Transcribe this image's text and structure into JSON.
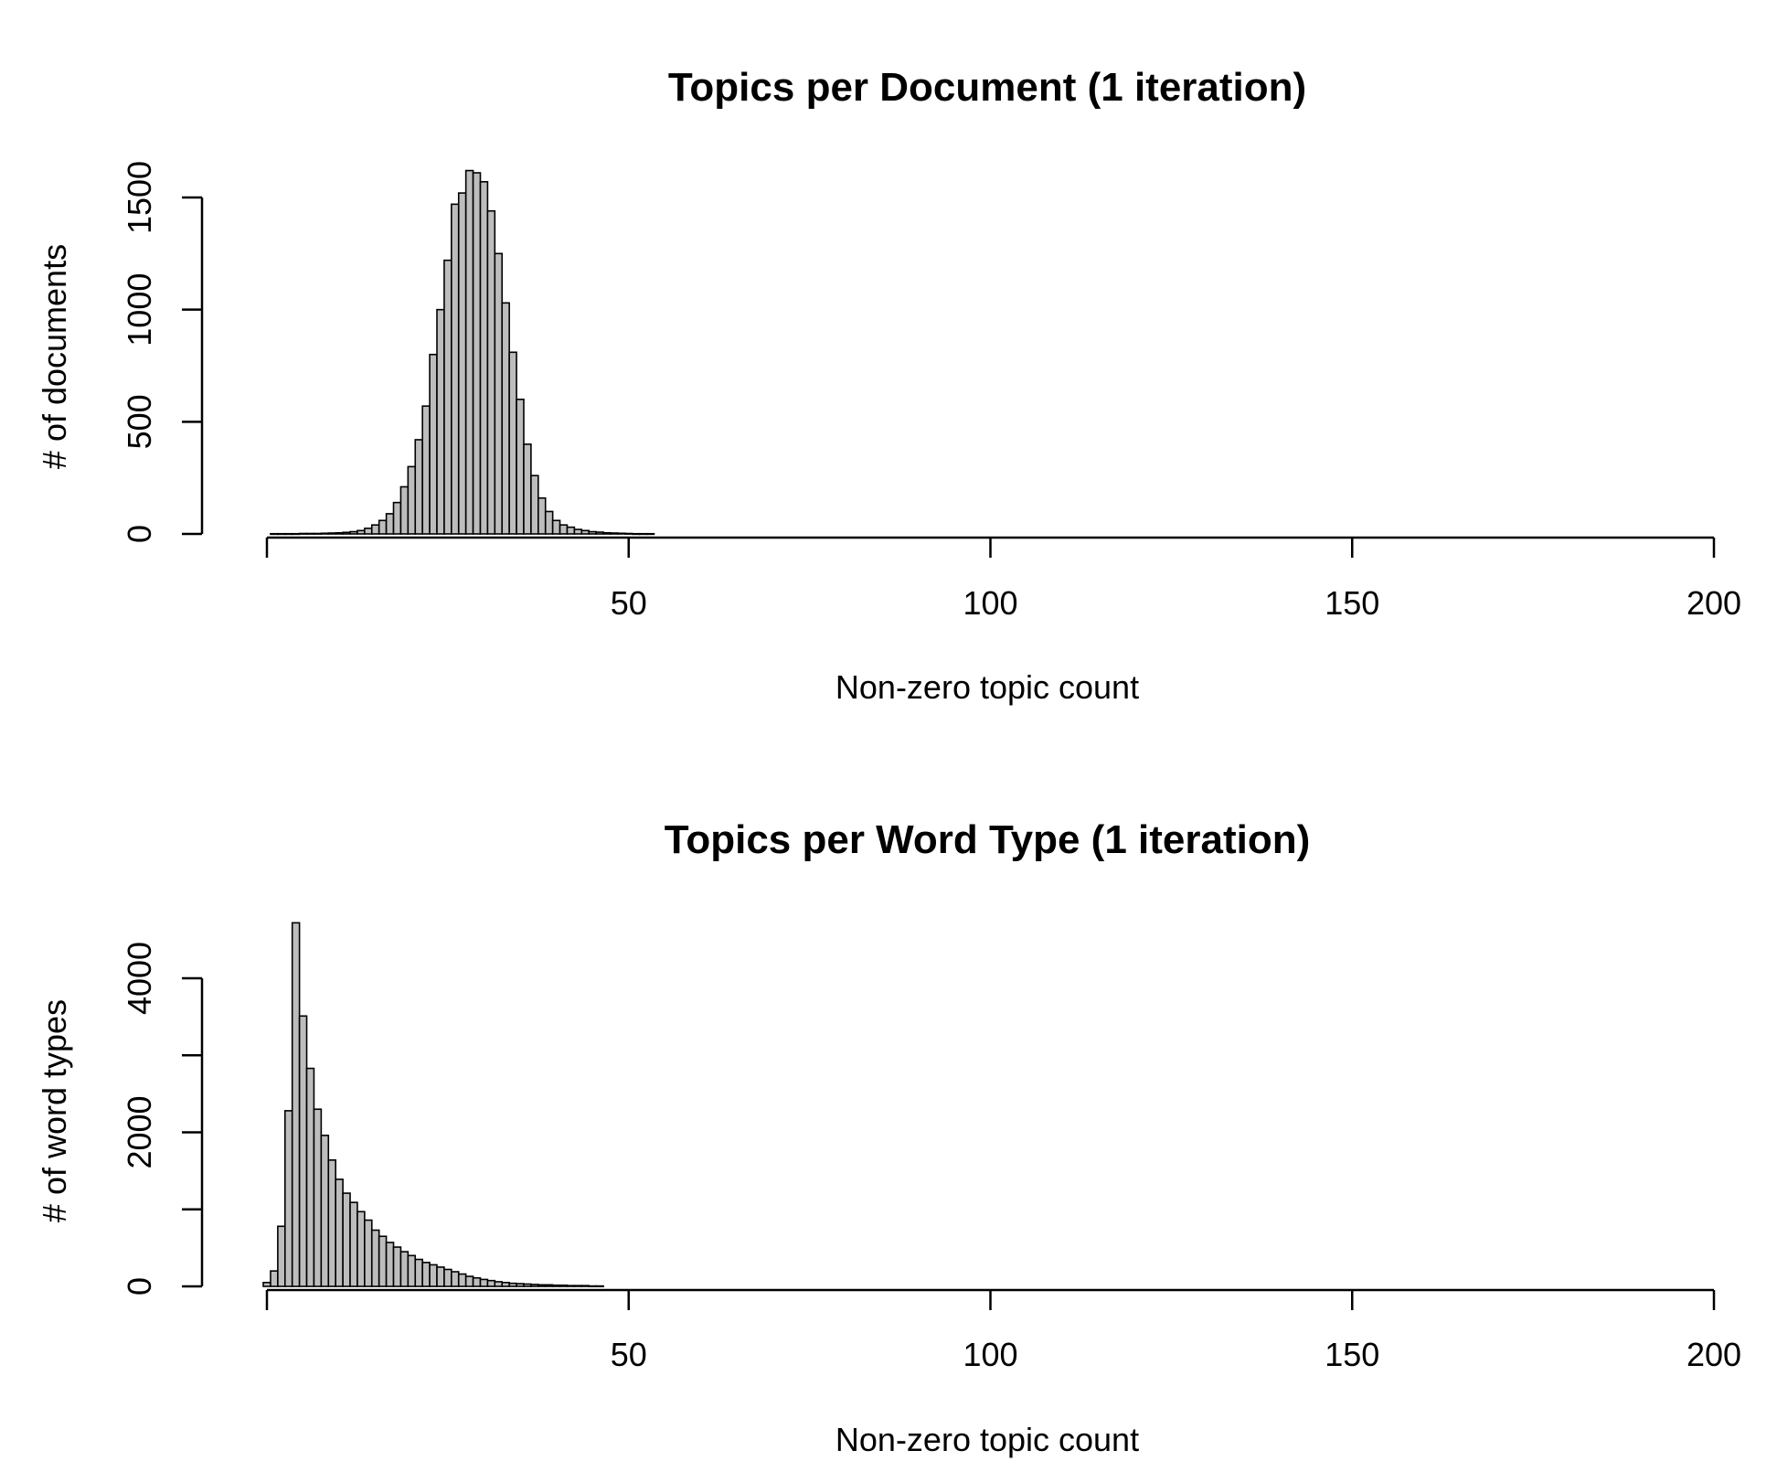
{
  "chart_data": [
    {
      "type": "bar",
      "title": "Topics per Document (1 iteration)",
      "xlabel": "Non-zero topic count",
      "ylabel": "# of documents",
      "xlim": [
        0,
        200
      ],
      "ylim": [
        0,
        1600
      ],
      "x_ticks": [
        "50",
        "100",
        "150",
        "200"
      ],
      "y_ticks": [
        "0",
        "500",
        "1000",
        "1500"
      ],
      "bin_width": 1,
      "x": [
        1,
        2,
        3,
        4,
        5,
        6,
        7,
        8,
        9,
        10,
        11,
        12,
        13,
        14,
        15,
        16,
        17,
        18,
        19,
        20,
        21,
        22,
        23,
        24,
        25,
        26,
        27,
        28,
        29,
        30,
        31,
        32,
        33,
        34,
        35,
        36,
        37,
        38,
        39,
        40,
        41,
        42,
        43,
        44,
        45,
        46,
        47,
        48,
        49,
        50,
        51,
        52,
        53
      ],
      "values": [
        1,
        1,
        1,
        1,
        2,
        2,
        2,
        3,
        4,
        5,
        7,
        10,
        15,
        25,
        40,
        60,
        90,
        140,
        210,
        300,
        420,
        570,
        800,
        1000,
        1220,
        1470,
        1520,
        1620,
        1610,
        1570,
        1440,
        1250,
        1030,
        810,
        600,
        400,
        260,
        160,
        100,
        60,
        40,
        30,
        20,
        15,
        10,
        8,
        5,
        4,
        3,
        2,
        1,
        1,
        1
      ]
    },
    {
      "type": "bar",
      "title": "Topics per Word Type (1 iteration)",
      "xlabel": "Non-zero topic count",
      "ylabel": "# of word types",
      "xlim": [
        0,
        200
      ],
      "ylim": [
        0,
        4800
      ],
      "x_ticks": [
        "50",
        "100",
        "150",
        "200"
      ],
      "y_ticks": [
        "0",
        "2000",
        "4000"
      ],
      "bin_width": 1,
      "x": [
        0,
        1,
        2,
        3,
        4,
        5,
        6,
        7,
        8,
        9,
        10,
        11,
        12,
        13,
        14,
        15,
        16,
        17,
        18,
        19,
        20,
        21,
        22,
        23,
        24,
        25,
        26,
        27,
        28,
        29,
        30,
        31,
        32,
        33,
        34,
        35,
        36,
        37,
        38,
        39,
        40,
        41,
        42,
        43,
        44,
        45,
        46
      ],
      "values": [
        50,
        200,
        780,
        2280,
        4720,
        3510,
        2830,
        2300,
        1960,
        1640,
        1390,
        1210,
        1090,
        970,
        860,
        730,
        650,
        570,
        510,
        450,
        400,
        350,
        310,
        280,
        250,
        220,
        190,
        160,
        130,
        110,
        90,
        75,
        60,
        50,
        40,
        35,
        30,
        25,
        20,
        20,
        15,
        15,
        10,
        10,
        10,
        5,
        5
      ]
    }
  ]
}
